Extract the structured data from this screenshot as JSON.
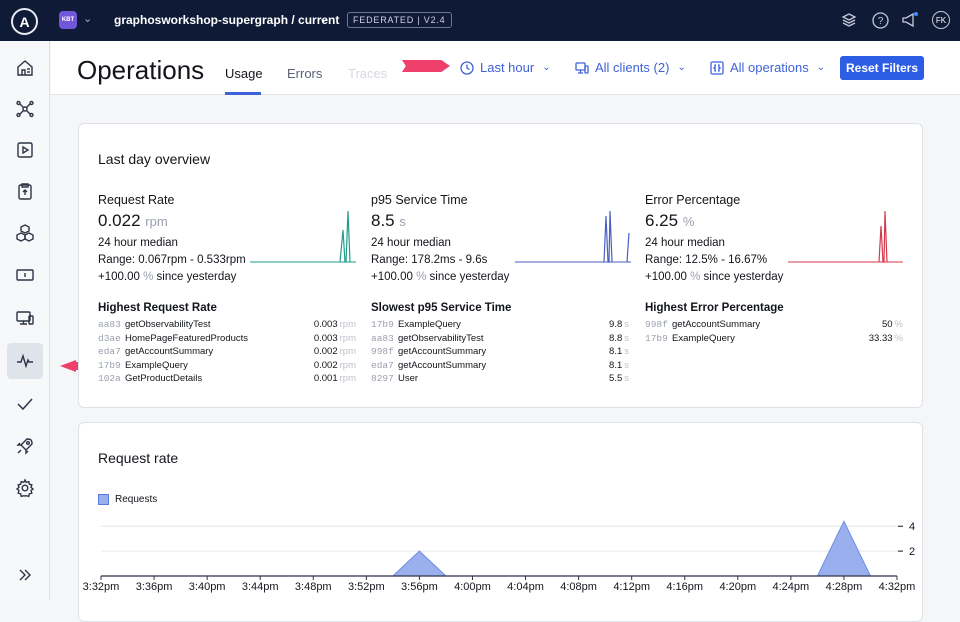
{
  "topbar": {
    "logo": "A",
    "org_badge": "KBT",
    "graph_name": "graphosworkshop-supergraph / current",
    "federation_badge": "FEDERATED | V2.4",
    "avatar_initials": "FK"
  },
  "header": {
    "title": "Operations",
    "tabs": [
      {
        "label": "Usage",
        "state": "active"
      },
      {
        "label": "Errors",
        "state": "normal"
      },
      {
        "label": "Traces",
        "state": "disabled"
      }
    ],
    "filters": {
      "time": "Last hour",
      "clients": "All clients (2)",
      "operations": "All operations"
    },
    "reset_label": "Reset Filters"
  },
  "overview": {
    "title": "Last day overview",
    "metrics": [
      {
        "title": "Request Rate",
        "value": "0.022",
        "unit": "rpm",
        "median_label": "24 hour median",
        "range": "Range: 0.067rpm - 0.533rpm",
        "change": "+100.00",
        "change_unit": "%",
        "change_suffix": "since yesterday",
        "color": "#1f9e8a"
      },
      {
        "title": "p95 Service Time",
        "value": "8.5",
        "unit": "s",
        "median_label": "24 hour median",
        "range": "Range: 178.2ms - 9.6s",
        "change": "+100.00",
        "change_unit": "%",
        "change_suffix": "since yesterday",
        "color": "#4a5fc1"
      },
      {
        "title": "Error Percentage",
        "value": "6.25",
        "unit": "%",
        "median_label": "24 hour median",
        "range": "Range: 12.5% - 16.67%",
        "change": "+100.00",
        "change_unit": "%",
        "change_suffix": "since yesterday",
        "color": "#d33a4a"
      }
    ],
    "lists": [
      {
        "title": "Highest Request Rate",
        "unit": "rpm",
        "rows": [
          {
            "id": "aa83",
            "name": "getObservabilityTest",
            "value": "0.003"
          },
          {
            "id": "d3ae",
            "name": "HomePageFeaturedProducts",
            "value": "0.003"
          },
          {
            "id": "eda7",
            "name": "getAccountSummary",
            "value": "0.002"
          },
          {
            "id": "17b9",
            "name": "ExampleQuery",
            "value": "0.002"
          },
          {
            "id": "102a",
            "name": "GetProductDetails",
            "value": "0.001"
          }
        ]
      },
      {
        "title": "Slowest p95 Service Time",
        "unit": "s",
        "rows": [
          {
            "id": "17b9",
            "name": "ExampleQuery",
            "value": "9.8"
          },
          {
            "id": "aa83",
            "name": "getObservabilityTest",
            "value": "8.8"
          },
          {
            "id": "998f",
            "name": "getAccountSummary",
            "value": "8.1"
          },
          {
            "id": "eda7",
            "name": "getAccountSummary",
            "value": "8.1"
          },
          {
            "id": "8297",
            "name": "User",
            "value": "5.5"
          }
        ]
      },
      {
        "title": "Highest Error Percentage",
        "unit": "%",
        "rows": [
          {
            "id": "998f",
            "name": "getAccountSummary",
            "value": "50"
          },
          {
            "id": "17b9",
            "name": "ExampleQuery",
            "value": "33.33"
          }
        ]
      }
    ]
  },
  "request_rate": {
    "title": "Request rate",
    "legend": "Requests"
  },
  "chart_data": {
    "type": "area",
    "title": "Request rate",
    "series": [
      {
        "name": "Requests",
        "color": "#9ab0ee"
      }
    ],
    "x_ticks": [
      "3:32pm",
      "3:36pm",
      "3:40pm",
      "3:44pm",
      "3:48pm",
      "3:52pm",
      "3:56pm",
      "4:00pm",
      "4:04pm",
      "4:08pm",
      "4:12pm",
      "4:16pm",
      "4:20pm",
      "4:24pm",
      "4:28pm",
      "4:32pm"
    ],
    "y_ticks": [
      2,
      4
    ],
    "ylim": [
      0,
      4.5
    ],
    "points": [
      {
        "x": "3:32pm",
        "y": 0
      },
      {
        "x": "3:52pm",
        "y": 0
      },
      {
        "x": "3:54pm",
        "y": 0
      },
      {
        "x": "3:56pm",
        "y": 2
      },
      {
        "x": "3:58pm",
        "y": 0
      },
      {
        "x": "4:26pm",
        "y": 0
      },
      {
        "x": "4:28pm",
        "y": 4.4
      },
      {
        "x": "4:30pm",
        "y": 0
      },
      {
        "x": "4:32pm",
        "y": 0
      }
    ]
  }
}
